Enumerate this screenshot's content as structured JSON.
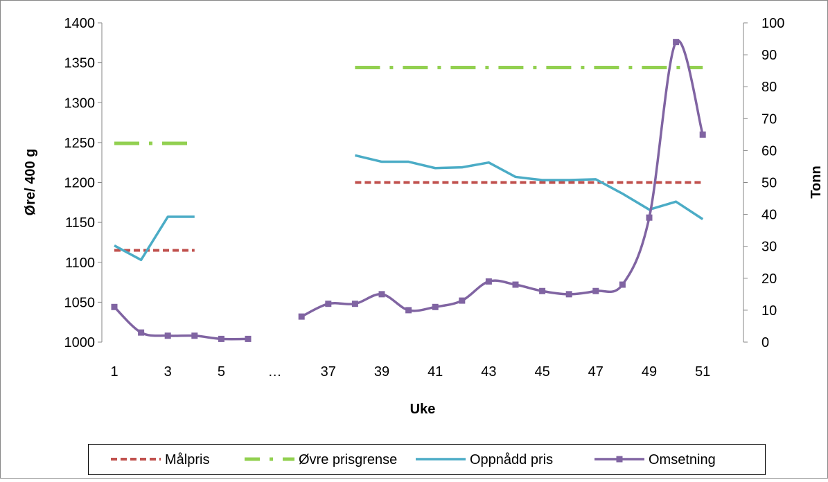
{
  "chart_data": {
    "type": "line",
    "xlabel": "Uke",
    "ylabel": "Øre/ 400 g",
    "y2label": "Tonn",
    "x_tick_labels": [
      "1",
      "3",
      "5",
      "…",
      "37",
      "39",
      "41",
      "43",
      "45",
      "47",
      "49",
      "51"
    ],
    "ylim": [
      1000,
      1400
    ],
    "y_ticks": [
      "1000",
      "1050",
      "1100",
      "1150",
      "1200",
      "1250",
      "1300",
      "1350",
      "1400"
    ],
    "y2lim": [
      0,
      100
    ],
    "y2_ticks": [
      "0",
      "10",
      "20",
      "30",
      "40",
      "50",
      "60",
      "70",
      "80",
      "90",
      "100"
    ],
    "grid": false,
    "legend_position": "bottom",
    "categories": [
      "1",
      "2",
      "3",
      "4",
      "5",
      "6",
      "…",
      "37",
      "38",
      "39",
      "40",
      "41",
      "42",
      "43",
      "44",
      "45",
      "46",
      "47",
      "48",
      "49",
      "50",
      "51",
      "52"
    ],
    "series": [
      {
        "name": "Målpris",
        "axis": "left",
        "style": "dashed",
        "color": "#c0504d",
        "segments": [
          {
            "x": [
              "1",
              "4"
            ],
            "y": [
              1115,
              1115
            ]
          },
          {
            "x": [
              "39",
              "52"
            ],
            "y": [
              1200,
              1200
            ]
          }
        ]
      },
      {
        "name": "Øvre prisgrense",
        "axis": "left",
        "style": "dash-dot",
        "color": "#92d050",
        "segments": [
          {
            "x": [
              "1",
              "4"
            ],
            "y": [
              1249,
              1249
            ]
          },
          {
            "x": [
              "39",
              "52"
            ],
            "y": [
              1344,
              1344
            ]
          }
        ]
      },
      {
        "name": "Oppnådd pris",
        "axis": "left",
        "style": "solid",
        "color": "#4bacc6",
        "segments": [
          {
            "x": [
              "1",
              "2",
              "3",
              "4"
            ],
            "y": [
              1121,
              1103,
              1157,
              1157
            ]
          },
          {
            "x": [
              "39",
              "40",
              "41",
              "42",
              "43",
              "44",
              "45",
              "46",
              "47",
              "48",
              "49",
              "50",
              "51",
              "52"
            ],
            "y": [
              1234,
              1226,
              1226,
              1218,
              1219,
              1225,
              1207,
              1203,
              1203,
              1204,
              1186,
              1166,
              1176,
              1154
            ]
          }
        ]
      },
      {
        "name": "Omsetning",
        "axis": "right",
        "style": "solid-markers",
        "color": "#8064a2",
        "segments": [
          {
            "x": [
              "1",
              "2",
              "3",
              "4",
              "5",
              "6"
            ],
            "y": [
              11,
              3,
              2,
              2,
              1,
              1
            ]
          },
          {
            "x": [
              "37",
              "38",
              "39",
              "40",
              "41",
              "42",
              "43",
              "44",
              "45",
              "46",
              "47",
              "48",
              "49",
              "50",
              "51",
              "52"
            ],
            "y": [
              8,
              12,
              12,
              15,
              10,
              11,
              13,
              19,
              18,
              16,
              15,
              16,
              18,
              39,
              94,
              65
            ]
          }
        ]
      }
    ]
  }
}
